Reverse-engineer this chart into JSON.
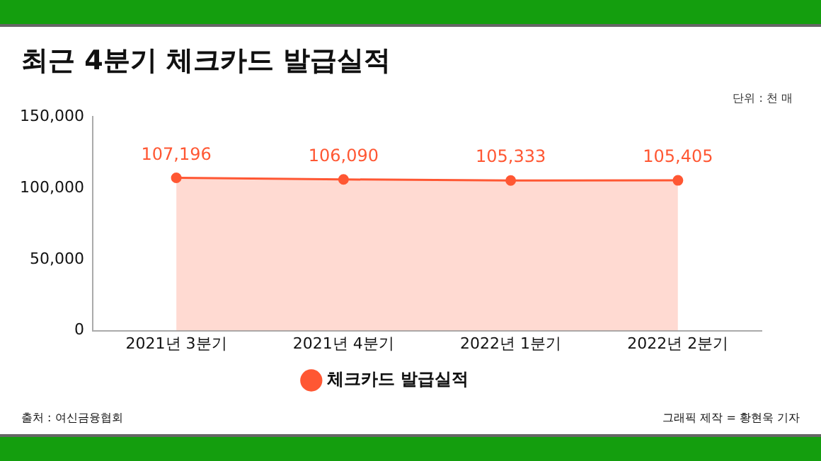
{
  "chart_data": {
    "type": "area",
    "title": "최근 4분기 체크카드 발급실적",
    "categories": [
      "2021년 3분기",
      "2021년 4분기",
      "2022년 1분기",
      "2022년 2분기"
    ],
    "series": [
      {
        "name": "체크카드 발급실적",
        "color": "#ff5733",
        "values": [
          107196,
          106090,
          105333,
          105405
        ],
        "value_labels": [
          "107,196",
          "106,090",
          "105,333",
          "105,405"
        ]
      }
    ],
    "ylim": [
      0,
      150000
    ],
    "yticks": [
      {
        "value": 0,
        "label": "0"
      },
      {
        "value": 50000,
        "label": "50,000"
      },
      {
        "value": 100000,
        "label": "100,000"
      },
      {
        "value": 150000,
        "label": "150,000"
      }
    ],
    "grid": false,
    "legend": "bottom",
    "marker": "circle",
    "line_style": "solid",
    "annotations": [
      "단위 : 천 매",
      "출처 : 여신금융협회",
      "그래픽 제작 = 황현욱 기자"
    ]
  }
}
